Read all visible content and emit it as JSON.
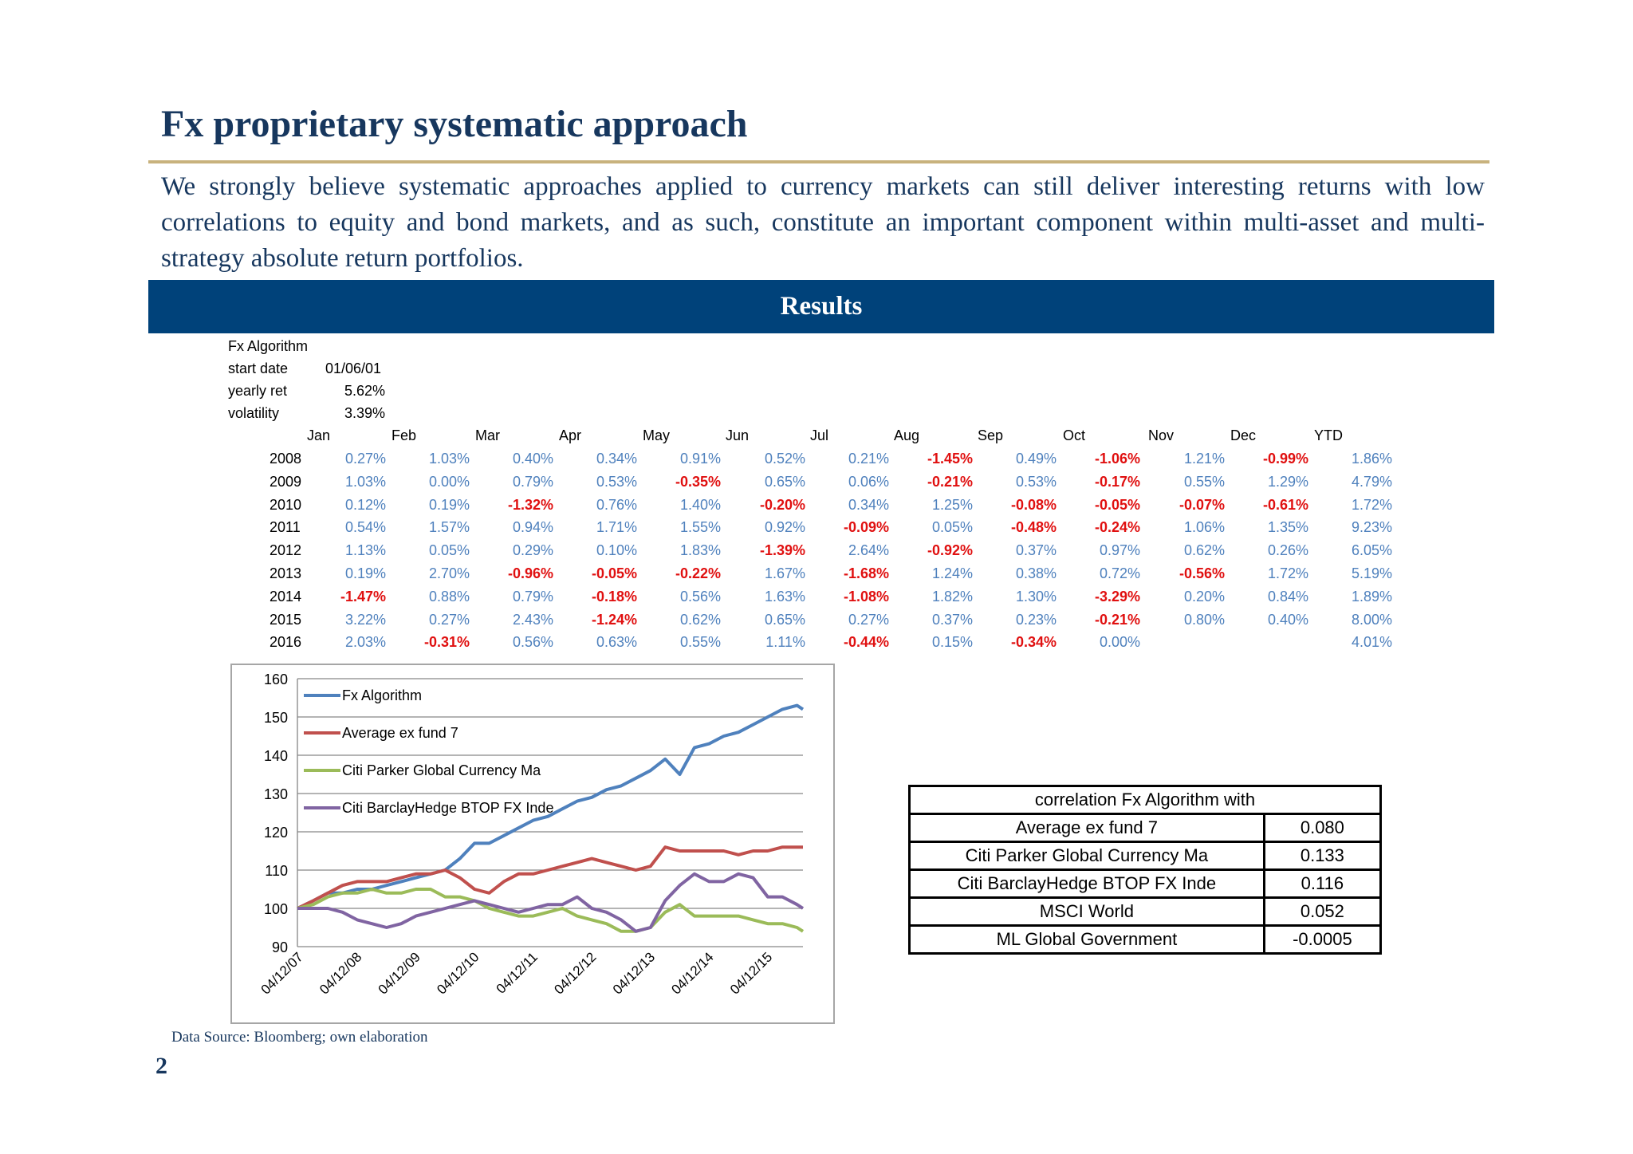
{
  "title": "Fx proprietary systematic approach",
  "intro": "We strongly believe systematic approaches applied to currency markets can still deliver interesting returns with low correlations to equity and bond markets, and as such, constitute an important component within multi-asset and multi-strategy absolute return portfolios.",
  "banner": "Results",
  "info": {
    "name": "Fx Algorithm",
    "start_label": "start date",
    "start_value": "01/06/01",
    "yearly_label": "yearly ret",
    "yearly_value": "5.62%",
    "vol_label": "volatility",
    "vol_value": "3.39%"
  },
  "months": [
    "Jan",
    "Feb",
    "Mar",
    "Apr",
    "May",
    "Jun",
    "Jul",
    "Aug",
    "Sep",
    "Oct",
    "Nov",
    "Dec",
    "YTD"
  ],
  "rows": [
    {
      "year": "2008",
      "vals": [
        "0.27%",
        "1.03%",
        "0.40%",
        "0.34%",
        "0.91%",
        "0.52%",
        "0.21%",
        "-1.45%",
        "0.49%",
        "-1.06%",
        "1.21%",
        "-0.99%",
        "1.86%"
      ]
    },
    {
      "year": "2009",
      "vals": [
        "1.03%",
        "0.00%",
        "0.79%",
        "0.53%",
        "-0.35%",
        "0.65%",
        "0.06%",
        "-0.21%",
        "0.53%",
        "-0.17%",
        "0.55%",
        "1.29%",
        "4.79%"
      ]
    },
    {
      "year": "2010",
      "vals": [
        "0.12%",
        "0.19%",
        "-1.32%",
        "0.76%",
        "1.40%",
        "-0.20%",
        "0.34%",
        "1.25%",
        "-0.08%",
        "-0.05%",
        "-0.07%",
        "-0.61%",
        "1.72%"
      ]
    },
    {
      "year": "2011",
      "vals": [
        "0.54%",
        "1.57%",
        "0.94%",
        "1.71%",
        "1.55%",
        "0.92%",
        "-0.09%",
        "0.05%",
        "-0.48%",
        "-0.24%",
        "1.06%",
        "1.35%",
        "9.23%"
      ]
    },
    {
      "year": "2012",
      "vals": [
        "1.13%",
        "0.05%",
        "0.29%",
        "0.10%",
        "1.83%",
        "-1.39%",
        "2.64%",
        "-0.92%",
        "0.37%",
        "0.97%",
        "0.62%",
        "0.26%",
        "6.05%"
      ]
    },
    {
      "year": "2013",
      "vals": [
        "0.19%",
        "2.70%",
        "-0.96%",
        "-0.05%",
        "-0.22%",
        "1.67%",
        "-1.68%",
        "1.24%",
        "0.38%",
        "0.72%",
        "-0.56%",
        "1.72%",
        "5.19%"
      ]
    },
    {
      "year": "2014",
      "vals": [
        "-1.47%",
        "0.88%",
        "0.79%",
        "-0.18%",
        "0.56%",
        "1.63%",
        "-1.08%",
        "1.82%",
        "1.30%",
        "-3.29%",
        "0.20%",
        "0.84%",
        "1.89%"
      ]
    },
    {
      "year": "2015",
      "vals": [
        "3.22%",
        "0.27%",
        "2.43%",
        "-1.24%",
        "0.62%",
        "0.65%",
        "0.27%",
        "0.37%",
        "0.23%",
        "-0.21%",
        "0.80%",
        "0.40%",
        "8.00%"
      ]
    },
    {
      "year": "2016",
      "vals": [
        "2.03%",
        "-0.31%",
        "0.56%",
        "0.63%",
        "0.55%",
        "1.11%",
        "-0.44%",
        "0.15%",
        "-0.34%",
        "0.00%",
        "",
        "",
        "4.01%"
      ]
    }
  ],
  "colors": {
    "positive": "#4f81bd",
    "negative": "#e01010",
    "title": "#17375e",
    "banner": "#00427a",
    "rule": "#c8b27d"
  },
  "chart_data": {
    "type": "line",
    "title": "",
    "xlabel": "",
    "ylabel": "",
    "ylim": [
      90,
      160
    ],
    "yticks": [
      90,
      100,
      110,
      120,
      130,
      140,
      150,
      160
    ],
    "xticks": [
      "04/12/07",
      "04/12/08",
      "04/12/09",
      "04/12/10",
      "04/12/11",
      "04/12/12",
      "04/12/13",
      "04/12/14",
      "04/12/15"
    ],
    "x": [
      2007.93,
      2008.2,
      2008.45,
      2008.7,
      2008.95,
      2009.2,
      2009.45,
      2009.7,
      2009.95,
      2010.2,
      2010.45,
      2010.7,
      2010.95,
      2011.2,
      2011.45,
      2011.7,
      2011.95,
      2012.2,
      2012.45,
      2012.7,
      2012.95,
      2013.2,
      2013.45,
      2013.7,
      2013.95,
      2014.2,
      2014.45,
      2014.7,
      2014.95,
      2015.2,
      2015.45,
      2015.7,
      2015.95,
      2016.2,
      2016.45,
      2016.55
    ],
    "series": [
      {
        "name": "Fx Algorithm",
        "color": "#4f81bd",
        "values": [
          100,
          102,
          104,
          104,
          105,
          105,
          106,
          107,
          108,
          109,
          110,
          113,
          117,
          117,
          119,
          121,
          123,
          124,
          126,
          128,
          129,
          131,
          132,
          134,
          136,
          139,
          135,
          142,
          143,
          145,
          146,
          148,
          150,
          152,
          153,
          152
        ]
      },
      {
        "name": "Average ex fund 7",
        "color": "#c0504d",
        "values": [
          100,
          102,
          104,
          106,
          107,
          107,
          107,
          108,
          109,
          109,
          110,
          108,
          105,
          104,
          107,
          109,
          109,
          110,
          111,
          112,
          113,
          112,
          111,
          110,
          111,
          116,
          115,
          115,
          115,
          115,
          114,
          115,
          115,
          116,
          116,
          116
        ]
      },
      {
        "name": "Citi Parker Global Currency Ma",
        "color": "#9bbb59",
        "values": [
          100,
          101,
          103,
          104,
          104,
          105,
          104,
          104,
          105,
          105,
          103,
          103,
          102,
          100,
          99,
          98,
          98,
          99,
          100,
          98,
          97,
          96,
          94,
          94,
          95,
          99,
          101,
          98,
          98,
          98,
          98,
          97,
          96,
          96,
          95,
          94
        ]
      },
      {
        "name": "Citi BarclayHedge BTOP FX Inde",
        "color": "#8064a2",
        "values": [
          100,
          100,
          100,
          99,
          97,
          96,
          95,
          96,
          98,
          99,
          100,
          101,
          102,
          101,
          100,
          99,
          100,
          101,
          101,
          103,
          100,
          99,
          97,
          94,
          95,
          102,
          106,
          109,
          107,
          107,
          109,
          108,
          103,
          103,
          101,
          100
        ]
      }
    ]
  },
  "correlation": {
    "header": "correlation Fx Algorithm with",
    "rows": [
      {
        "label": "Average ex fund 7",
        "value": "0.080"
      },
      {
        "label": "Citi Parker Global Currency Ma",
        "value": "0.133"
      },
      {
        "label": "Citi BarclayHedge BTOP FX Inde",
        "value": "0.116"
      },
      {
        "label": "MSCI World",
        "value": "0.052"
      },
      {
        "label": "ML Global Government",
        "value": "-0.0005"
      }
    ]
  },
  "source": "Data Source: Bloomberg; own elaboration",
  "page_number": "2"
}
